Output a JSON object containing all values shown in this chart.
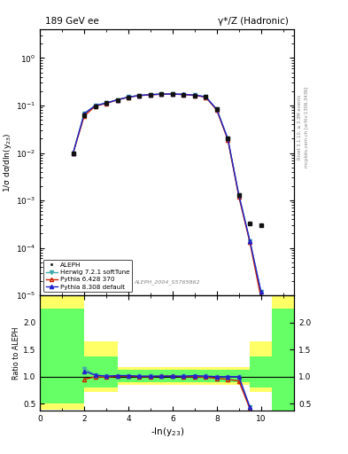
{
  "title_left": "189 GeV ee",
  "title_right": "γ*/Z (Hadronic)",
  "ylabel_main": "1/σ dσ/dln(y$_{23}$)",
  "ylabel_ratio": "Ratio to ALEPH",
  "xlabel": "-ln(y$_{23}$)",
  "watermark": "ALEPH_2004_S5765862",
  "right_label_top": "Rivet 3.1.10, ≥ 3.3M events",
  "right_label_bot": "mcplots.cern.ch [arXiv:1306.3436]",
  "x": [
    1.5,
    2.0,
    2.5,
    3.0,
    3.5,
    4.0,
    4.5,
    5.0,
    5.5,
    6.0,
    6.5,
    7.0,
    7.5,
    8.0,
    8.5,
    9.0,
    9.5,
    10.0,
    10.5,
    11.0
  ],
  "aleph_y": [
    0.01,
    0.063,
    0.097,
    0.112,
    0.13,
    0.148,
    0.162,
    0.168,
    0.172,
    0.173,
    0.17,
    0.163,
    0.152,
    0.083,
    0.02,
    0.0013,
    0.00032,
    null,
    null,
    null
  ],
  "aleph_isolated": [
    null,
    null,
    null,
    null,
    null,
    null,
    null,
    null,
    null,
    null,
    null,
    null,
    null,
    null,
    null,
    null,
    null,
    0.0003,
    null,
    null
  ],
  "herwig_y": [
    0.01,
    0.068,
    0.1,
    0.113,
    0.132,
    0.151,
    0.163,
    0.17,
    0.174,
    0.175,
    0.171,
    0.165,
    0.153,
    0.083,
    0.02,
    0.0013,
    0.00014,
    1.2e-05,
    null,
    null
  ],
  "pythia6_y": [
    0.01,
    0.06,
    0.097,
    0.111,
    0.131,
    0.15,
    0.162,
    0.168,
    0.173,
    0.174,
    0.17,
    0.163,
    0.15,
    0.08,
    0.019,
    0.0012,
    0.00013,
    9e-06,
    null,
    null
  ],
  "pythia8_y": [
    0.01,
    0.067,
    0.1,
    0.113,
    0.132,
    0.151,
    0.163,
    0.17,
    0.174,
    0.175,
    0.172,
    0.166,
    0.153,
    0.083,
    0.02,
    0.0013,
    0.00014,
    1.2e-05,
    null,
    null
  ],
  "herwig_ratio": [
    null,
    1.15,
    1.03,
    1.01,
    1.02,
    1.02,
    1.01,
    1.01,
    1.01,
    1.01,
    1.01,
    1.01,
    1.01,
    1.0,
    1.0,
    1.0,
    0.44,
    0.04,
    null,
    null
  ],
  "pythia6_ratio": [
    null,
    0.95,
    1.0,
    0.99,
    1.01,
    1.01,
    1.0,
    1.0,
    1.01,
    1.01,
    1.0,
    1.0,
    0.99,
    0.97,
    0.95,
    0.92,
    0.41,
    0.03,
    null,
    null
  ],
  "pythia8_ratio": [
    null,
    1.1,
    1.03,
    1.01,
    1.02,
    1.02,
    1.01,
    1.01,
    1.01,
    1.01,
    1.01,
    1.02,
    1.01,
    1.0,
    1.0,
    1.0,
    0.44,
    0.04,
    null,
    null
  ],
  "herwig_color": "#44aaaa",
  "pythia6_color": "#cc2200",
  "pythia8_color": "#2222cc",
  "aleph_color": "#111111",
  "ylim_main": [
    1e-05,
    4.0
  ],
  "ylim_ratio": [
    0.37,
    2.5
  ],
  "xlim": [
    0,
    11.5
  ]
}
